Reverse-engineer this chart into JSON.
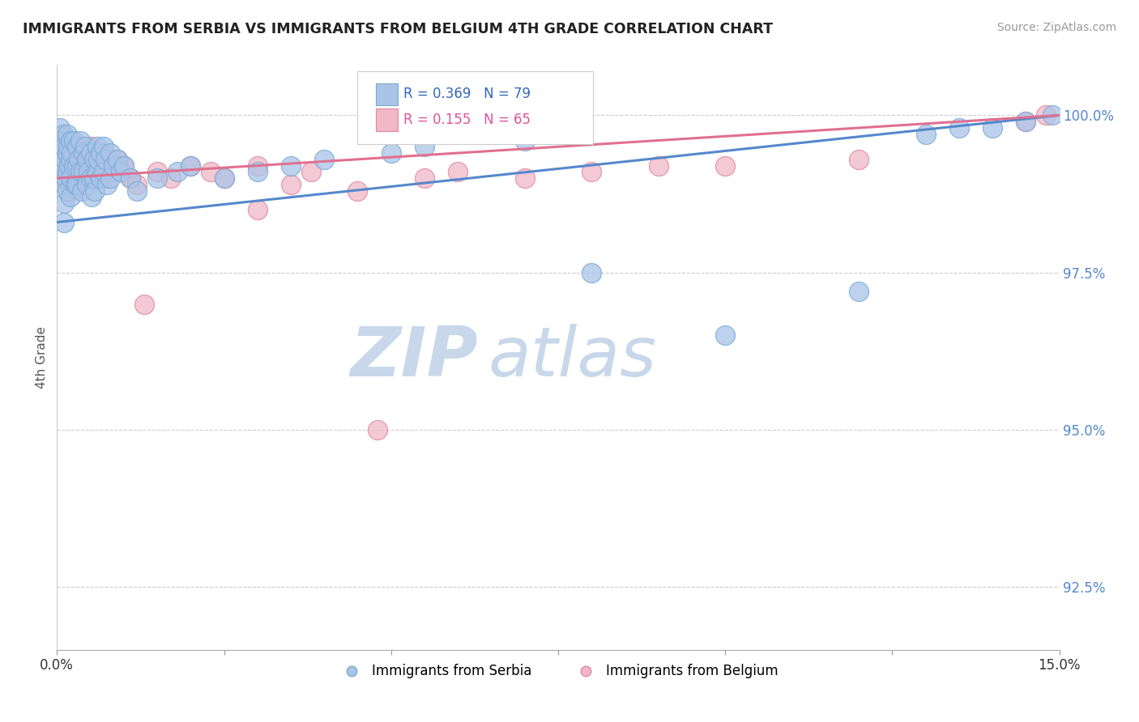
{
  "title": "IMMIGRANTS FROM SERBIA VS IMMIGRANTS FROM BELGIUM 4TH GRADE CORRELATION CHART",
  "source": "Source: ZipAtlas.com",
  "ylabel": "4th Grade",
  "xmin": 0.0,
  "xmax": 15.0,
  "ymin": 91.5,
  "ymax": 100.8,
  "yticks": [
    92.5,
    95.0,
    97.5,
    100.0
  ],
  "ytick_labels": [
    "92.5%",
    "95.0%",
    "97.5%",
    "100.0%"
  ],
  "xticks": [
    0.0,
    2.5,
    5.0,
    7.5,
    10.0,
    12.5,
    15.0
  ],
  "serbia_color": "#aac4e8",
  "serbia_edge": "#7aaad4",
  "serbia_line_color": "#5588cc",
  "belgium_color": "#f0b8c8",
  "belgium_edge": "#e088a0",
  "belgium_line_color": "#e07090",
  "serbia_R": 0.369,
  "serbia_N": 79,
  "belgium_R": 0.155,
  "belgium_N": 65,
  "serbia_x": [
    0.05,
    0.07,
    0.08,
    0.09,
    0.1,
    0.1,
    0.1,
    0.1,
    0.1,
    0.12,
    0.13,
    0.15,
    0.15,
    0.15,
    0.15,
    0.17,
    0.18,
    0.2,
    0.2,
    0.2,
    0.2,
    0.22,
    0.25,
    0.25,
    0.27,
    0.3,
    0.3,
    0.3,
    0.32,
    0.35,
    0.35,
    0.37,
    0.4,
    0.4,
    0.42,
    0.45,
    0.45,
    0.47,
    0.5,
    0.5,
    0.52,
    0.55,
    0.55,
    0.57,
    0.6,
    0.6,
    0.62,
    0.65,
    0.65,
    0.7,
    0.7,
    0.72,
    0.75,
    0.8,
    0.8,
    0.85,
    0.9,
    0.95,
    1.0,
    1.1,
    1.2,
    1.5,
    1.8,
    2.0,
    2.5,
    3.0,
    3.5,
    4.0,
    5.0,
    5.5,
    7.0,
    8.0,
    10.0,
    12.0,
    13.0,
    13.5,
    14.0,
    14.5,
    14.9
  ],
  "serbia_y": [
    99.8,
    99.6,
    99.4,
    99.7,
    99.5,
    99.2,
    98.9,
    98.6,
    98.3,
    99.3,
    99.0,
    99.7,
    99.4,
    99.1,
    98.8,
    99.5,
    99.2,
    99.6,
    99.3,
    99.0,
    98.7,
    99.4,
    99.6,
    99.2,
    98.9,
    99.5,
    99.2,
    98.9,
    99.3,
    99.6,
    99.1,
    98.8,
    99.4,
    99.1,
    99.5,
    99.3,
    98.9,
    99.1,
    99.4,
    99.0,
    98.7,
    99.3,
    99.0,
    98.8,
    99.5,
    99.1,
    99.3,
    99.4,
    99.0,
    99.5,
    99.1,
    99.3,
    98.9,
    99.4,
    99.0,
    99.2,
    99.3,
    99.1,
    99.2,
    99.0,
    98.8,
    99.0,
    99.1,
    99.2,
    99.0,
    99.1,
    99.2,
    99.3,
    99.4,
    99.5,
    99.6,
    97.5,
    96.5,
    97.2,
    99.7,
    99.8,
    99.8,
    99.9,
    100.0
  ],
  "belgium_x": [
    0.05,
    0.07,
    0.08,
    0.1,
    0.1,
    0.12,
    0.14,
    0.15,
    0.15,
    0.17,
    0.2,
    0.2,
    0.2,
    0.22,
    0.25,
    0.25,
    0.27,
    0.3,
    0.3,
    0.32,
    0.35,
    0.35,
    0.37,
    0.4,
    0.4,
    0.42,
    0.45,
    0.5,
    0.5,
    0.52,
    0.55,
    0.6,
    0.6,
    0.65,
    0.7,
    0.7,
    0.75,
    0.8,
    0.85,
    0.9,
    0.95,
    1.0,
    1.1,
    1.2,
    1.5,
    1.7,
    2.0,
    2.3,
    2.5,
    3.0,
    3.5,
    3.8,
    4.5,
    5.5,
    6.0,
    7.0,
    8.0,
    9.0,
    10.0,
    12.0,
    1.3,
    3.0,
    4.8,
    14.5,
    14.8
  ],
  "belgium_y": [
    99.6,
    99.3,
    99.0,
    99.5,
    99.1,
    99.3,
    99.0,
    99.6,
    99.2,
    99.4,
    99.5,
    99.1,
    98.8,
    99.3,
    99.5,
    99.0,
    99.2,
    99.4,
    99.0,
    99.3,
    99.5,
    99.1,
    98.9,
    99.4,
    99.0,
    99.2,
    99.3,
    99.5,
    99.1,
    99.3,
    99.0,
    99.4,
    99.1,
    99.2,
    99.4,
    99.0,
    99.2,
    99.3,
    99.1,
    99.3,
    99.1,
    99.2,
    99.0,
    98.9,
    99.1,
    99.0,
    99.2,
    99.1,
    99.0,
    99.2,
    98.9,
    99.1,
    98.8,
    99.0,
    99.1,
    99.0,
    99.1,
    99.2,
    99.2,
    99.3,
    97.0,
    98.5,
    95.0,
    99.9,
    100.0
  ],
  "watermark_zip": "ZIP",
  "watermark_atlas": "atlas",
  "background_color": "#ffffff",
  "grid_color": "#cccccc",
  "grid_style": "--"
}
